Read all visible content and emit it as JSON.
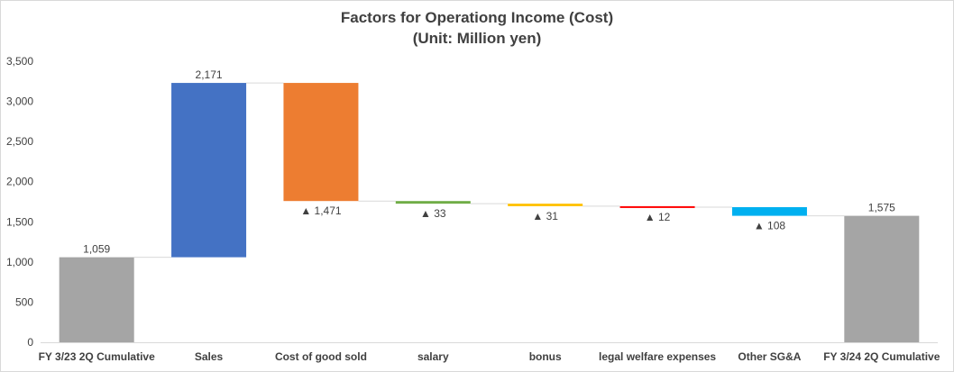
{
  "chart_data": {
    "type": "bar",
    "subtype": "waterfall",
    "title": "Factors for Operationg Income (Cost)",
    "subtitle": "(Unit: Million yen)",
    "categories": [
      "FY 3/23 2Q Cumulative",
      "Sales",
      "Cost of good sold",
      "salary",
      "bonus",
      "legal welfare expenses",
      "Other SG&A",
      "FY 3/24 2Q Cumulative"
    ],
    "values": [
      1059,
      2171,
      -1471,
      -33,
      -31,
      -12,
      -108,
      1575
    ],
    "data_labels": [
      "1,059",
      "2,171",
      "▲ 1,471",
      "▲ 33",
      "▲ 31",
      "▲ 12",
      "▲ 108",
      "1,575"
    ],
    "bar_kinds": [
      "total",
      "increase",
      "decrease",
      "decrease",
      "decrease",
      "decrease",
      "decrease",
      "total"
    ],
    "colors": [
      "#a5a5a5",
      "#4472c4",
      "#ed7d31",
      "#70ad47",
      "#ffc000",
      "#ff0000",
      "#00b0f0",
      "#a5a5a5"
    ],
    "connector_color": "#d9d9d9",
    "ylim": [
      0,
      3500
    ],
    "yticks": [
      0,
      500,
      1000,
      1500,
      2000,
      2500,
      3000,
      3500
    ],
    "ytick_labels": [
      "0",
      "500",
      "1,000",
      "1,500",
      "2,000",
      "2,500",
      "3,000",
      "3,500"
    ],
    "grid": false,
    "legend": "none"
  }
}
